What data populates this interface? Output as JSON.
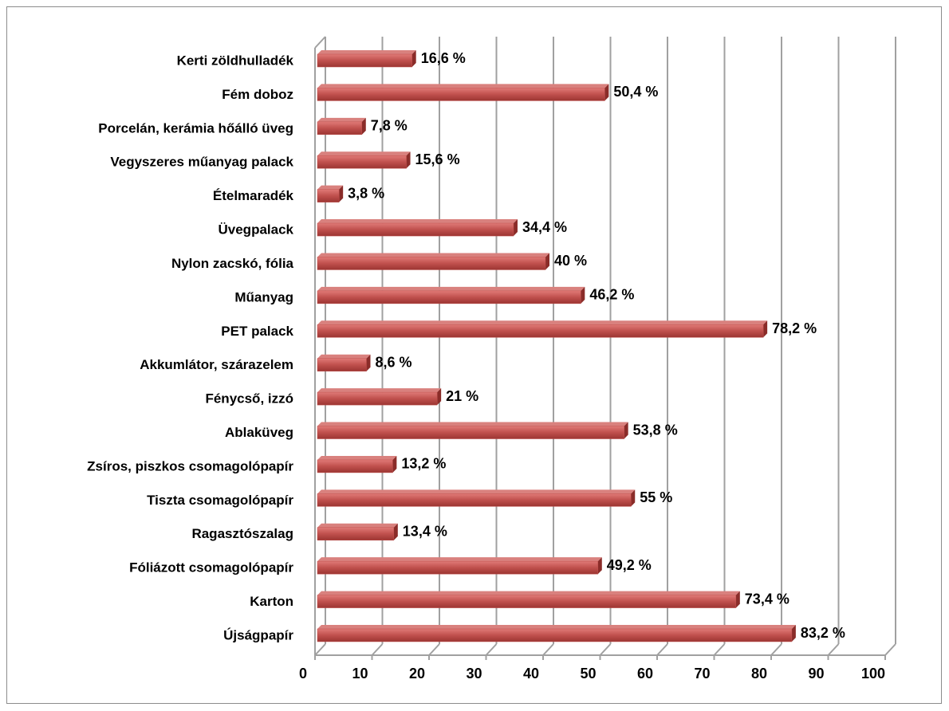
{
  "chart_data": {
    "type": "bar",
    "orientation": "horizontal",
    "categories": [
      "Kerti zöldhulladék",
      "Fém doboz",
      "Porcelán, kerámia hőálló üveg",
      "Vegyszeres műanyag palack",
      "Ételmaradék",
      "Üvegpalack",
      "Nylon zacskó, fólia",
      "Műanyag",
      "PET palack",
      "Akkumlátor, szárazelem",
      "Fénycső, izzó",
      "Ablaküveg",
      "Zsíros, piszkos csomagolópapír",
      "Tiszta csomagolópapír",
      "Ragasztószalag",
      "Fóliázott csomagolópapír",
      "Karton",
      "Újságpapír"
    ],
    "values": [
      16.6,
      50.4,
      7.8,
      15.6,
      3.8,
      34.4,
      40,
      46.2,
      78.2,
      8.6,
      21,
      53.8,
      13.2,
      55,
      13.4,
      49.2,
      73.4,
      83.2
    ],
    "value_labels": [
      "16,6 %",
      "50,4 %",
      "7,8 %",
      "15,6 %",
      "3,8 %",
      "34,4 %",
      "40 %",
      "46,2 %",
      "78,2 %",
      "8,6 %",
      "21 %",
      "53,8 %",
      "13,2 %",
      "55 %",
      "13,4 %",
      "49,2 %",
      "73,4 %",
      "83,2 %"
    ],
    "color": "#c0504d",
    "xlim": [
      0,
      100
    ],
    "xticks": [
      0,
      10,
      20,
      30,
      40,
      50,
      60,
      70,
      80,
      90,
      100
    ],
    "grid": true
  }
}
